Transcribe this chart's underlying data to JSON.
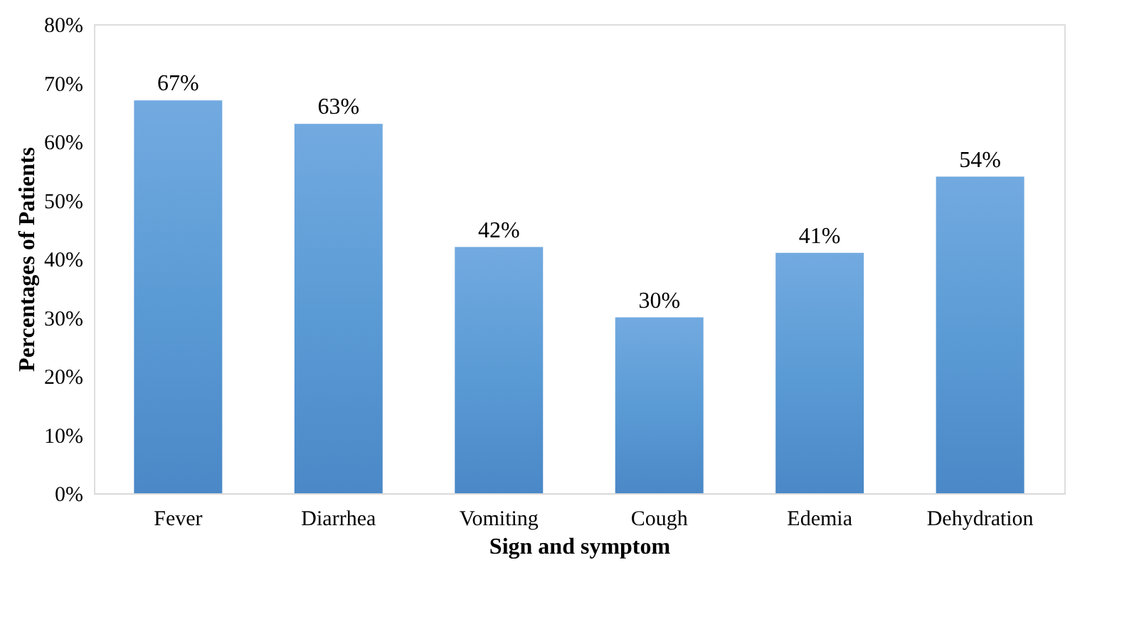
{
  "chart_data": {
    "type": "bar",
    "xlabel": "Sign and symptom",
    "ylabel": "Percentages of Patients",
    "categories": [
      "Fever",
      "Diarrhea",
      "Vomiting",
      "Cough",
      "Edemia",
      "Dehydration"
    ],
    "values": [
      67,
      63,
      42,
      30,
      41,
      54
    ],
    "value_labels": [
      "67%",
      "63%",
      "42%",
      "30%",
      "41%",
      "54%"
    ],
    "color": "#5b9bd5",
    "ylim": [
      0,
      80
    ],
    "yticks": [
      {
        "value": 0,
        "label": "0%"
      },
      {
        "value": 10,
        "label": "10%"
      },
      {
        "value": 20,
        "label": "20%"
      },
      {
        "value": 30,
        "label": "30%"
      },
      {
        "value": 40,
        "label": "40%"
      },
      {
        "value": 50,
        "label": "50%"
      },
      {
        "value": 60,
        "label": "60%"
      },
      {
        "value": 70,
        "label": "70%"
      },
      {
        "value": 80,
        "label": "80%"
      }
    ],
    "grid": false
  }
}
